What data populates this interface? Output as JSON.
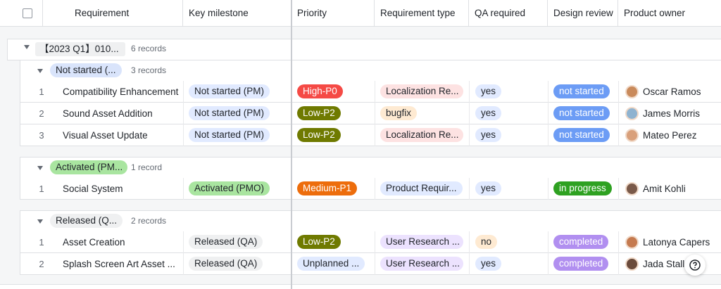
{
  "header": {
    "columns": [
      "Requirement",
      "Key milestone",
      "Priority",
      "Requirement type",
      "QA required",
      "Design review",
      "Product owner"
    ]
  },
  "group": {
    "label": "【2023 Q1】010...",
    "count": "6 records",
    "subgroups": [
      {
        "label": "Not started (...",
        "count": "3 records",
        "rows": [
          [
            "1",
            "Compatibility Enhancement",
            "Not started (PM)",
            "High-P0",
            "Localization Re...",
            "yes",
            "not started",
            "Oscar Ramos"
          ],
          [
            "2",
            "Sound Asset Addition",
            "Not started (PM)",
            "Low-P2",
            "bugfix",
            "yes",
            "not started",
            "James Morris"
          ],
          [
            "3",
            "Visual Asset Update",
            "Not started (PM)",
            "Low-P2",
            "Localization Re...",
            "yes",
            "not started",
            "Mateo Perez"
          ]
        ]
      },
      {
        "label": "Activated (PM...",
        "count": "1 record",
        "rows": [
          [
            "1",
            "Social System",
            "Activated (PMO)",
            "Medium-P1",
            "Product Requir...",
            "yes",
            "in progress",
            "Amit Kohli"
          ]
        ]
      },
      {
        "label": "Released (Q...",
        "count": "2 records",
        "rows": [
          [
            "1",
            "Asset Creation",
            "Released (QA)",
            "Low-P2",
            "User Research ...",
            "no",
            "completed",
            "Latonya Capers"
          ],
          [
            "2",
            "Splash Screen Art Asset ...",
            "Released (QA)",
            "Unplanned ...",
            "User Research ...",
            "yes",
            "completed",
            "Jada Stall"
          ]
        ]
      }
    ]
  }
}
